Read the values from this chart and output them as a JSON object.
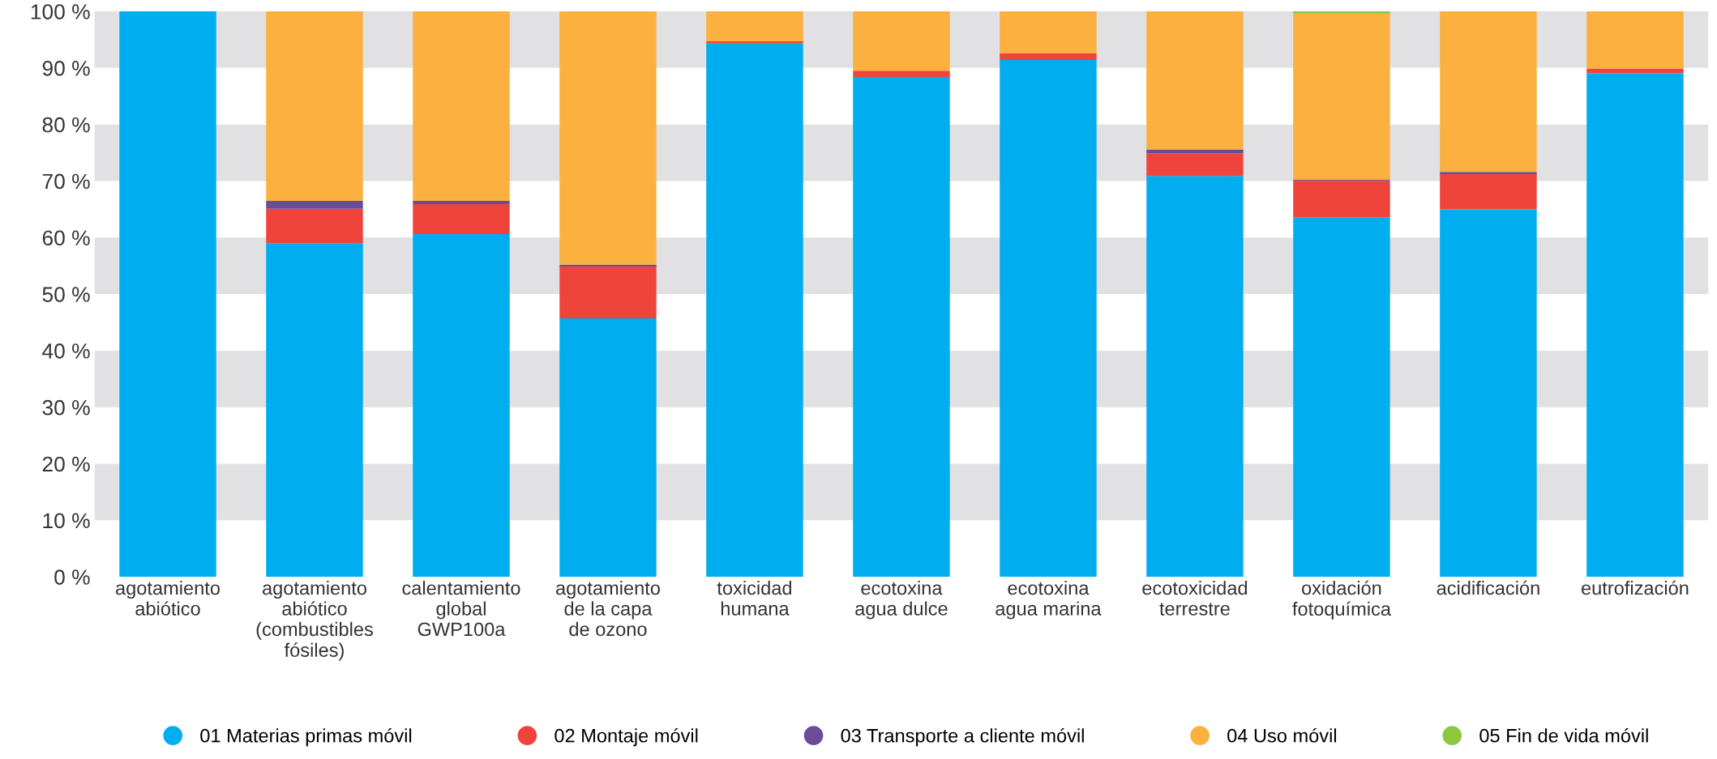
{
  "chart_data": {
    "type": "bar",
    "stacked": true,
    "categories": [
      "agotamiento\nabiótico",
      "agotamiento\nabiótico\n(combustibles\nfósiles)",
      "calentamiento\nglobal\nGWP100a",
      "agotamiento\nde la capa\nde ozono",
      "toxicidad\nhumana",
      "ecotoxina\nagua dulce",
      "ecotoxina\nagua marina",
      "ecotoxicidad\nterrestre",
      "oxidación\nfotoquímica",
      "acidificación",
      "eutrofización"
    ],
    "series": [
      {
        "name": "01 Materias primas móvil",
        "color": "#00aeef",
        "values": [
          100,
          59.0,
          60.6,
          45.7,
          94.3,
          88.4,
          91.4,
          70.9,
          63.6,
          65.0,
          89.1
        ]
      },
      {
        "name": "02 Montaje móvil",
        "color": "#ef443b",
        "values": [
          0,
          6.1,
          5.3,
          9.2,
          0.4,
          1.1,
          1.2,
          4.0,
          6.5,
          6.2,
          0.8
        ]
      },
      {
        "name": "03 Transporte a cliente móvil",
        "color": "#6b4c9a",
        "values": [
          0,
          1.4,
          0.6,
          0.3,
          0,
          0,
          0,
          0.7,
          0.2,
          0.4,
          0
        ]
      },
      {
        "name": "04 Uso móvil",
        "color": "#fbb040",
        "values": [
          0,
          33.5,
          33.5,
          44.8,
          5.3,
          10.5,
          7.4,
          24.4,
          29.3,
          28.4,
          10.1
        ]
      },
      {
        "name": "05 Fin de vida móvil",
        "color": "#8dc63f",
        "values": [
          0,
          0,
          0,
          0,
          0,
          0,
          0,
          0,
          0.4,
          0,
          0
        ]
      }
    ],
    "ylim": [
      0,
      100
    ],
    "yticks": [
      {
        "value": 0,
        "label": "0 %"
      },
      {
        "value": 10,
        "label": "10 %"
      },
      {
        "value": 20,
        "label": "20 %"
      },
      {
        "value": 30,
        "label": "30 %"
      },
      {
        "value": 40,
        "label": "40 %"
      },
      {
        "value": 50,
        "label": "50 %"
      },
      {
        "value": 60,
        "label": "60 %"
      },
      {
        "value": 70,
        "label": "70 %"
      },
      {
        "value": 80,
        "label": "80 %"
      },
      {
        "value": 90,
        "label": "90 %"
      },
      {
        "value": 100,
        "label": "100 %"
      }
    ],
    "bands": [
      {
        "axis": "y",
        "from": 10,
        "to": 20,
        "color": "#e1e1e4"
      },
      {
        "axis": "y",
        "from": 30,
        "to": 40,
        "color": "#e1e1e4"
      },
      {
        "axis": "y",
        "from": 50,
        "to": 60,
        "color": "#e1e1e4"
      },
      {
        "axis": "y",
        "from": 70,
        "to": 80,
        "color": "#e1e1e4"
      },
      {
        "axis": "y",
        "from": 90,
        "to": 100,
        "color": "#e1e1e4"
      }
    ],
    "grid": false,
    "legend": "bottom"
  }
}
